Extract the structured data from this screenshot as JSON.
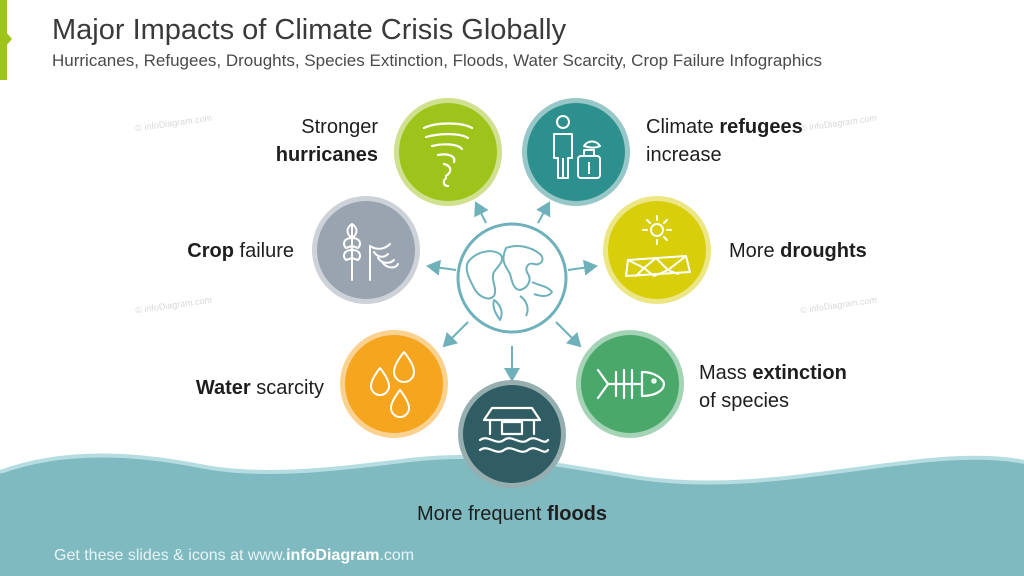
{
  "header": {
    "title": "Major Impacts of Climate Crisis Globally",
    "subtitle": "Hurricanes, Refugees, Droughts, Species Extinction, Floods, Water Scarcity, Crop Failure Infographics"
  },
  "watermark": "© infoDiagram.com",
  "colors": {
    "accent": "#9ec31a",
    "hurricanes": "#9ec31a",
    "refugees": "#2e8f8f",
    "droughts": "#d8ce0a",
    "extinction": "#4aa86b",
    "floods": "#2f5d63",
    "water": "#f5a51e",
    "crop": "#9aa3b0",
    "center": "#6fb1bb",
    "wave": "#7fbac1"
  },
  "center": {
    "icon": "globe-icon"
  },
  "impacts": [
    {
      "key": "hurricanes",
      "icon": "tornado-icon",
      "line1": "Stronger",
      "bold": "hurricanes",
      "normal": ""
    },
    {
      "key": "refugees",
      "icon": "refugee-icon",
      "line1": "Climate ",
      "bold": "refugees",
      "normal": "increase"
    },
    {
      "key": "droughts",
      "icon": "drought-icon",
      "line1": "More ",
      "bold": "droughts",
      "normal": ""
    },
    {
      "key": "extinction",
      "icon": "fish-skeleton-icon",
      "line1": "Mass ",
      "bold": "extinction",
      "normal": "of species"
    },
    {
      "key": "floods",
      "icon": "flooded-house-icon",
      "line1": "More frequent ",
      "bold": "floods",
      "normal": ""
    },
    {
      "key": "water",
      "icon": "water-drops-icon",
      "line1": "",
      "bold": "Water",
      "normal": " scarcity"
    },
    {
      "key": "crop",
      "icon": "wheat-icon",
      "line1": "",
      "bold": "Crop",
      "normal": " failure"
    }
  ],
  "footer": {
    "prefix": "Get these slides & icons at www.",
    "brand": "infoDiagram",
    "suffix": ".com"
  }
}
